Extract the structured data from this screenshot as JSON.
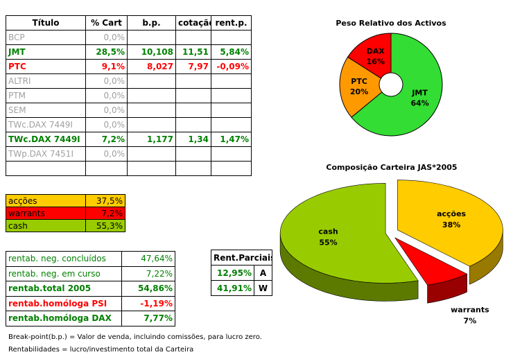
{
  "portfolio_table": {
    "headers": [
      "Título",
      "% Cart",
      "b.p.",
      "cotação",
      "rent.p."
    ],
    "rows": [
      {
        "cells": [
          "BCP",
          "0,0%"
        ],
        "color": "#a0a0a0",
        "bold": false
      },
      {
        "cells": [
          "JMT",
          "28,5%",
          "10,108",
          "11,51",
          "5,84%"
        ],
        "color": "#008000",
        "bold": true
      },
      {
        "cells": [
          "PTC",
          "9,1%",
          "8,027",
          "7,97",
          "-0,09%"
        ],
        "color": "#ff0000",
        "bold": true
      },
      {
        "cells": [
          "ALTRI",
          "0,0%"
        ],
        "color": "#a0a0a0",
        "bold": false
      },
      {
        "cells": [
          "PTM",
          "0,0%"
        ],
        "color": "#a0a0a0",
        "bold": false
      },
      {
        "cells": [
          "SEM",
          "0,0%"
        ],
        "color": "#a0a0a0",
        "bold": false
      },
      {
        "cells": [
          "TWc.DAX 7449I",
          "0,0%"
        ],
        "color": "#a0a0a0",
        "bold": false
      },
      {
        "cells": [
          "TWc.DAX 7449I",
          "7,2%",
          "1,177",
          "1,34",
          "1,47%"
        ],
        "color": "#008000",
        "bold": true
      },
      {
        "cells": [
          "TWp.DAX 7451I",
          "0,0%"
        ],
        "color": "#a0a0a0",
        "bold": false
      }
    ]
  },
  "allocation_table": {
    "rows": [
      {
        "cells": [
          "acções",
          "37,5%"
        ],
        "background": "#ffcc00"
      },
      {
        "cells": [
          "warrants",
          "7,2%"
        ],
        "background": "#ff0000"
      },
      {
        "cells": [
          "cash",
          "55,3%"
        ],
        "background": "#99cc00"
      }
    ]
  },
  "returns_table": {
    "rows": [
      {
        "cells": [
          "rentab. neg. concluídos",
          "47,64%"
        ],
        "color": "#008000",
        "bold": false
      },
      {
        "cells": [
          "rentab. neg. em curso",
          "7,22%"
        ],
        "color": "#008000",
        "bold": false
      },
      {
        "cells": [
          "rentab.total 2005",
          "54,86%"
        ],
        "color": "#008000",
        "bold": true
      },
      {
        "cells": [
          "rentab.homóloga PSI",
          "-1,19%"
        ],
        "color": "#ff0000",
        "bold": true
      },
      {
        "cells": [
          "rentab.homóloga DAX",
          "7,77%"
        ],
        "color": "#008000",
        "bold": true
      }
    ]
  },
  "partial_returns": {
    "title": "Rent.Parciais",
    "rows": [
      [
        "12,95%",
        "A"
      ],
      [
        "41,91%",
        "W"
      ]
    ]
  },
  "notes": [
    "Break-point(b.p.) = Valor de venda, incluindo comissões, para lucro zero.",
    "Rentabilidades = lucro/investimento total da Carteira"
  ],
  "chart_data": [
    {
      "type": "donut",
      "title": "Peso Relativo dos Activos",
      "categories": [
        "JMT",
        "PTC",
        "DAX"
      ],
      "values": [
        64,
        20,
        16
      ],
      "value_labels": [
        "64%",
        "20%",
        "16%"
      ],
      "colors": [
        "#33dd33",
        "#ff9900",
        "#ff0000"
      ]
    },
    {
      "type": "pie3d",
      "title": "Composição Carteira JAS*2005",
      "categories": [
        "acções",
        "warrants",
        "cash"
      ],
      "values": [
        38,
        7,
        55
      ],
      "value_labels": [
        "38%",
        "7%",
        "55%"
      ],
      "colors": [
        "#ffcc00",
        "#ff0000",
        "#99cc00"
      ]
    }
  ]
}
